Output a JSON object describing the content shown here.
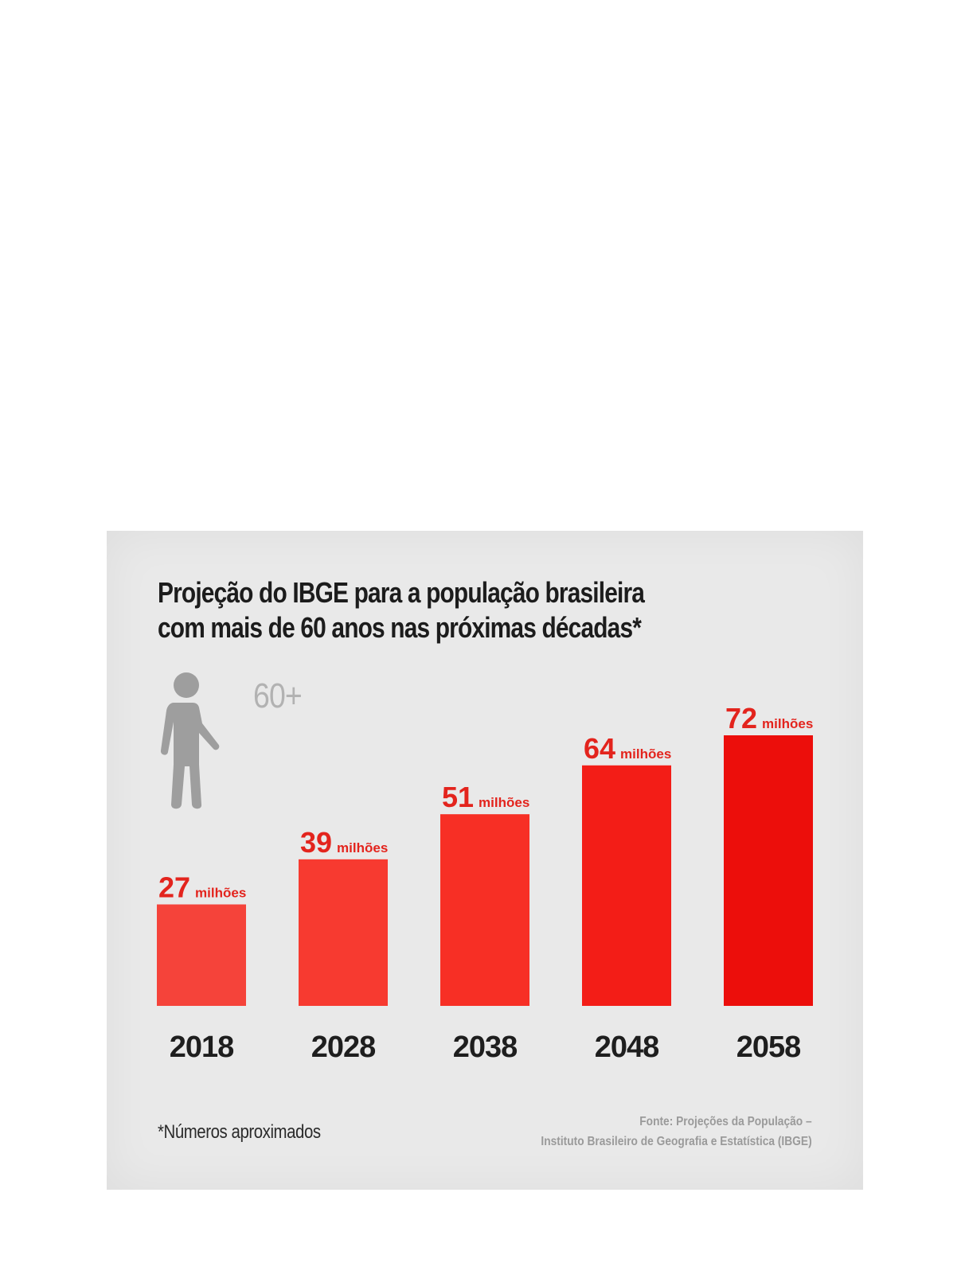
{
  "chart_data": {
    "type": "bar",
    "title_lines": [
      "Projeção do IBGE para a população brasileira",
      "com mais de 60 anos nas próximas décadas*"
    ],
    "categories": [
      "2018",
      "2028",
      "2038",
      "2048",
      "2058"
    ],
    "values": [
      27,
      39,
      51,
      64,
      72
    ],
    "value_unit": "milhões",
    "ylim": [
      0,
      72
    ],
    "grid": false,
    "legend": "none",
    "bar_colors": [
      "#f5433a",
      "#f73a30",
      "#f72f25",
      "#f31d17",
      "#ec0e0b"
    ],
    "label_color": "#e3241d",
    "icon": {
      "name": "elderly-person-icon",
      "badge": "60+"
    },
    "footnote": "*Números aproximados",
    "source_lines": [
      "Fonte: Projeções da População –",
      "Instituto Brasileiro de Geografia e Estatística (IBGE)"
    ]
  }
}
